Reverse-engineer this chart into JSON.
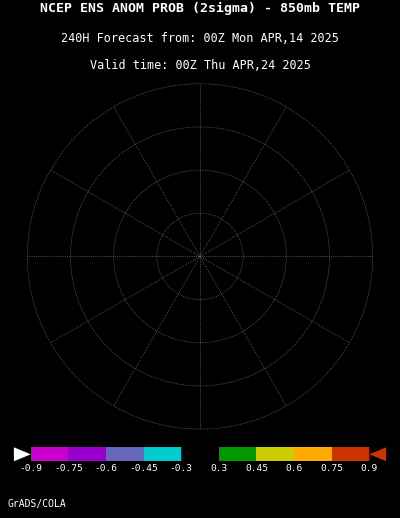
{
  "title_line1": "NCEP ENS ANOM PROB (2sigma) - 850mb TEMP",
  "title_line2": "240H Forecast from: 00Z Mon APR,14 2025",
  "title_line3": "Valid time: 00Z Thu APR,24 2025",
  "credit": "GrADS/COLA",
  "background_color": "#000000",
  "map_background": "#000000",
  "colorbar_colors": [
    "#cc00cc",
    "#9900cc",
    "#6666bb",
    "#00cccc",
    "#000000",
    "#009900",
    "#cccc00",
    "#ffaa00",
    "#cc3300"
  ],
  "colorbar_labels": [
    "-0.9",
    "-0.75",
    "-0.6",
    "-0.45",
    "-0.3",
    "0.3",
    "0.45",
    "0.6",
    "0.75",
    "0.9"
  ],
  "land_color": "#ffffff",
  "ocean_color": "#000000",
  "grid_color": "#888888",
  "title_color": "#ffffff",
  "label_color": "#ffffff",
  "title_fontsize": 9.5,
  "subtitle_fontsize": 8.5,
  "credit_fontsize": 7,
  "map_extent": [
    -180,
    180,
    -90,
    -20
  ]
}
